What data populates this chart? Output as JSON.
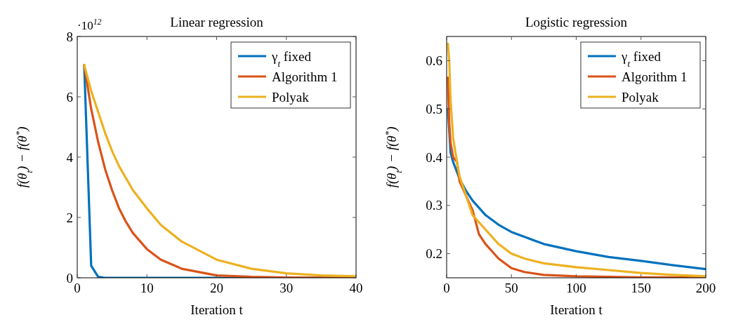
{
  "chart_data": [
    {
      "type": "line",
      "title": "Linear regression",
      "xlabel": "Iteration t",
      "ylabel": "f(θ$_{t}$) − f(θ$^{*}$)",
      "annotations": [
        "·10$^{12}$"
      ],
      "xlim": [
        0,
        40
      ],
      "xticks": [
        0,
        10,
        20,
        30,
        40
      ],
      "ylim": [
        0,
        8
      ],
      "yticks": [
        0,
        2,
        4,
        6,
        8
      ],
      "grid": false,
      "legend": "top right",
      "series": [
        {
          "name": "γ$_{t}$ fixed",
          "color": "#0072bd",
          "x": [
            1,
            2,
            3,
            4,
            10,
            20,
            30,
            40
          ],
          "values": [
            7.05,
            0.4,
            0.03,
            0,
            0,
            0,
            0,
            0
          ]
        },
        {
          "name": "Algorithm 1",
          "color": "#d95319",
          "x": [
            1,
            2,
            3,
            4,
            5,
            6,
            7,
            8,
            10,
            12,
            15,
            20,
            25,
            30,
            40
          ],
          "values": [
            7.05,
            5.6,
            4.5,
            3.6,
            2.9,
            2.3,
            1.85,
            1.48,
            0.95,
            0.6,
            0.3,
            0.08,
            0.03,
            0.01,
            0
          ]
        },
        {
          "name": "Polyak",
          "color": "#edb120",
          "x": [
            1,
            2,
            3,
            4,
            5,
            6,
            8,
            10,
            12,
            15,
            20,
            25,
            30,
            35,
            40
          ],
          "values": [
            7.05,
            6.2,
            5.5,
            4.8,
            4.2,
            3.7,
            2.9,
            2.3,
            1.75,
            1.2,
            0.6,
            0.3,
            0.15,
            0.08,
            0.05
          ]
        }
      ]
    },
    {
      "type": "line",
      "title": "Logistic regression",
      "xlabel": "Iteration t",
      "ylabel": "f(θ$_{t}$) − f(θ$^{*}$)",
      "xlim": [
        0,
        200
      ],
      "xticks": [
        0,
        50,
        100,
        150,
        200
      ],
      "ylim": [
        0.15,
        0.65
      ],
      "yticks": [
        0.2,
        0.3,
        0.4,
        0.5,
        0.6
      ],
      "grid": false,
      "legend": "top right",
      "series": [
        {
          "name": "γ$_{t}$ fixed",
          "color": "#0072bd",
          "x": [
            1,
            3,
            5,
            10,
            15,
            20,
            30,
            40,
            50,
            75,
            100,
            125,
            150,
            175,
            200
          ],
          "values": [
            0.5,
            0.41,
            0.39,
            0.355,
            0.33,
            0.31,
            0.28,
            0.26,
            0.245,
            0.22,
            0.205,
            0.193,
            0.185,
            0.176,
            0.168
          ]
        },
        {
          "name": "Algorithm 1",
          "color": "#d95319",
          "x": [
            1,
            2,
            3,
            5,
            8,
            10,
            15,
            20,
            25,
            30,
            40,
            50,
            60,
            75,
            100,
            150,
            200
          ],
          "values": [
            0.565,
            0.47,
            0.43,
            0.4,
            0.39,
            0.35,
            0.32,
            0.29,
            0.24,
            0.22,
            0.19,
            0.17,
            0.162,
            0.156,
            0.153,
            0.151,
            0.151
          ]
        },
        {
          "name": "Polyak",
          "color": "#edb120",
          "x": [
            1,
            2,
            3,
            5,
            8,
            10,
            15,
            20,
            30,
            40,
            50,
            60,
            75,
            100,
            125,
            150,
            175,
            200
          ],
          "values": [
            0.635,
            0.6,
            0.52,
            0.44,
            0.39,
            0.36,
            0.32,
            0.28,
            0.25,
            0.22,
            0.2,
            0.19,
            0.18,
            0.172,
            0.166,
            0.16,
            0.156,
            0.153
          ]
        }
      ]
    }
  ]
}
